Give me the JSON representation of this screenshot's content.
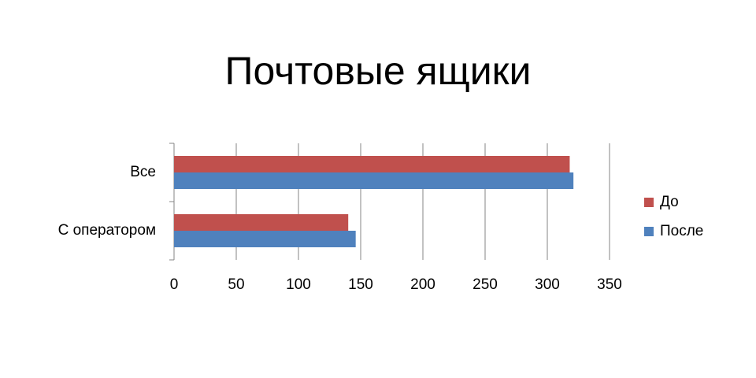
{
  "chart_data": {
    "type": "hbar",
    "title": "Почтовые ящики",
    "categories": [
      "Все",
      "С оператором"
    ],
    "series": [
      {
        "name": "До",
        "color": "#c0504d",
        "values": [
          318,
          140
        ]
      },
      {
        "name": "После",
        "color": "#4f81bd",
        "values": [
          321,
          146
        ]
      }
    ],
    "xlim": [
      0,
      350
    ],
    "xticks": [
      0,
      50,
      100,
      150,
      200,
      250,
      300,
      350
    ],
    "grid": true,
    "legend": "right"
  }
}
